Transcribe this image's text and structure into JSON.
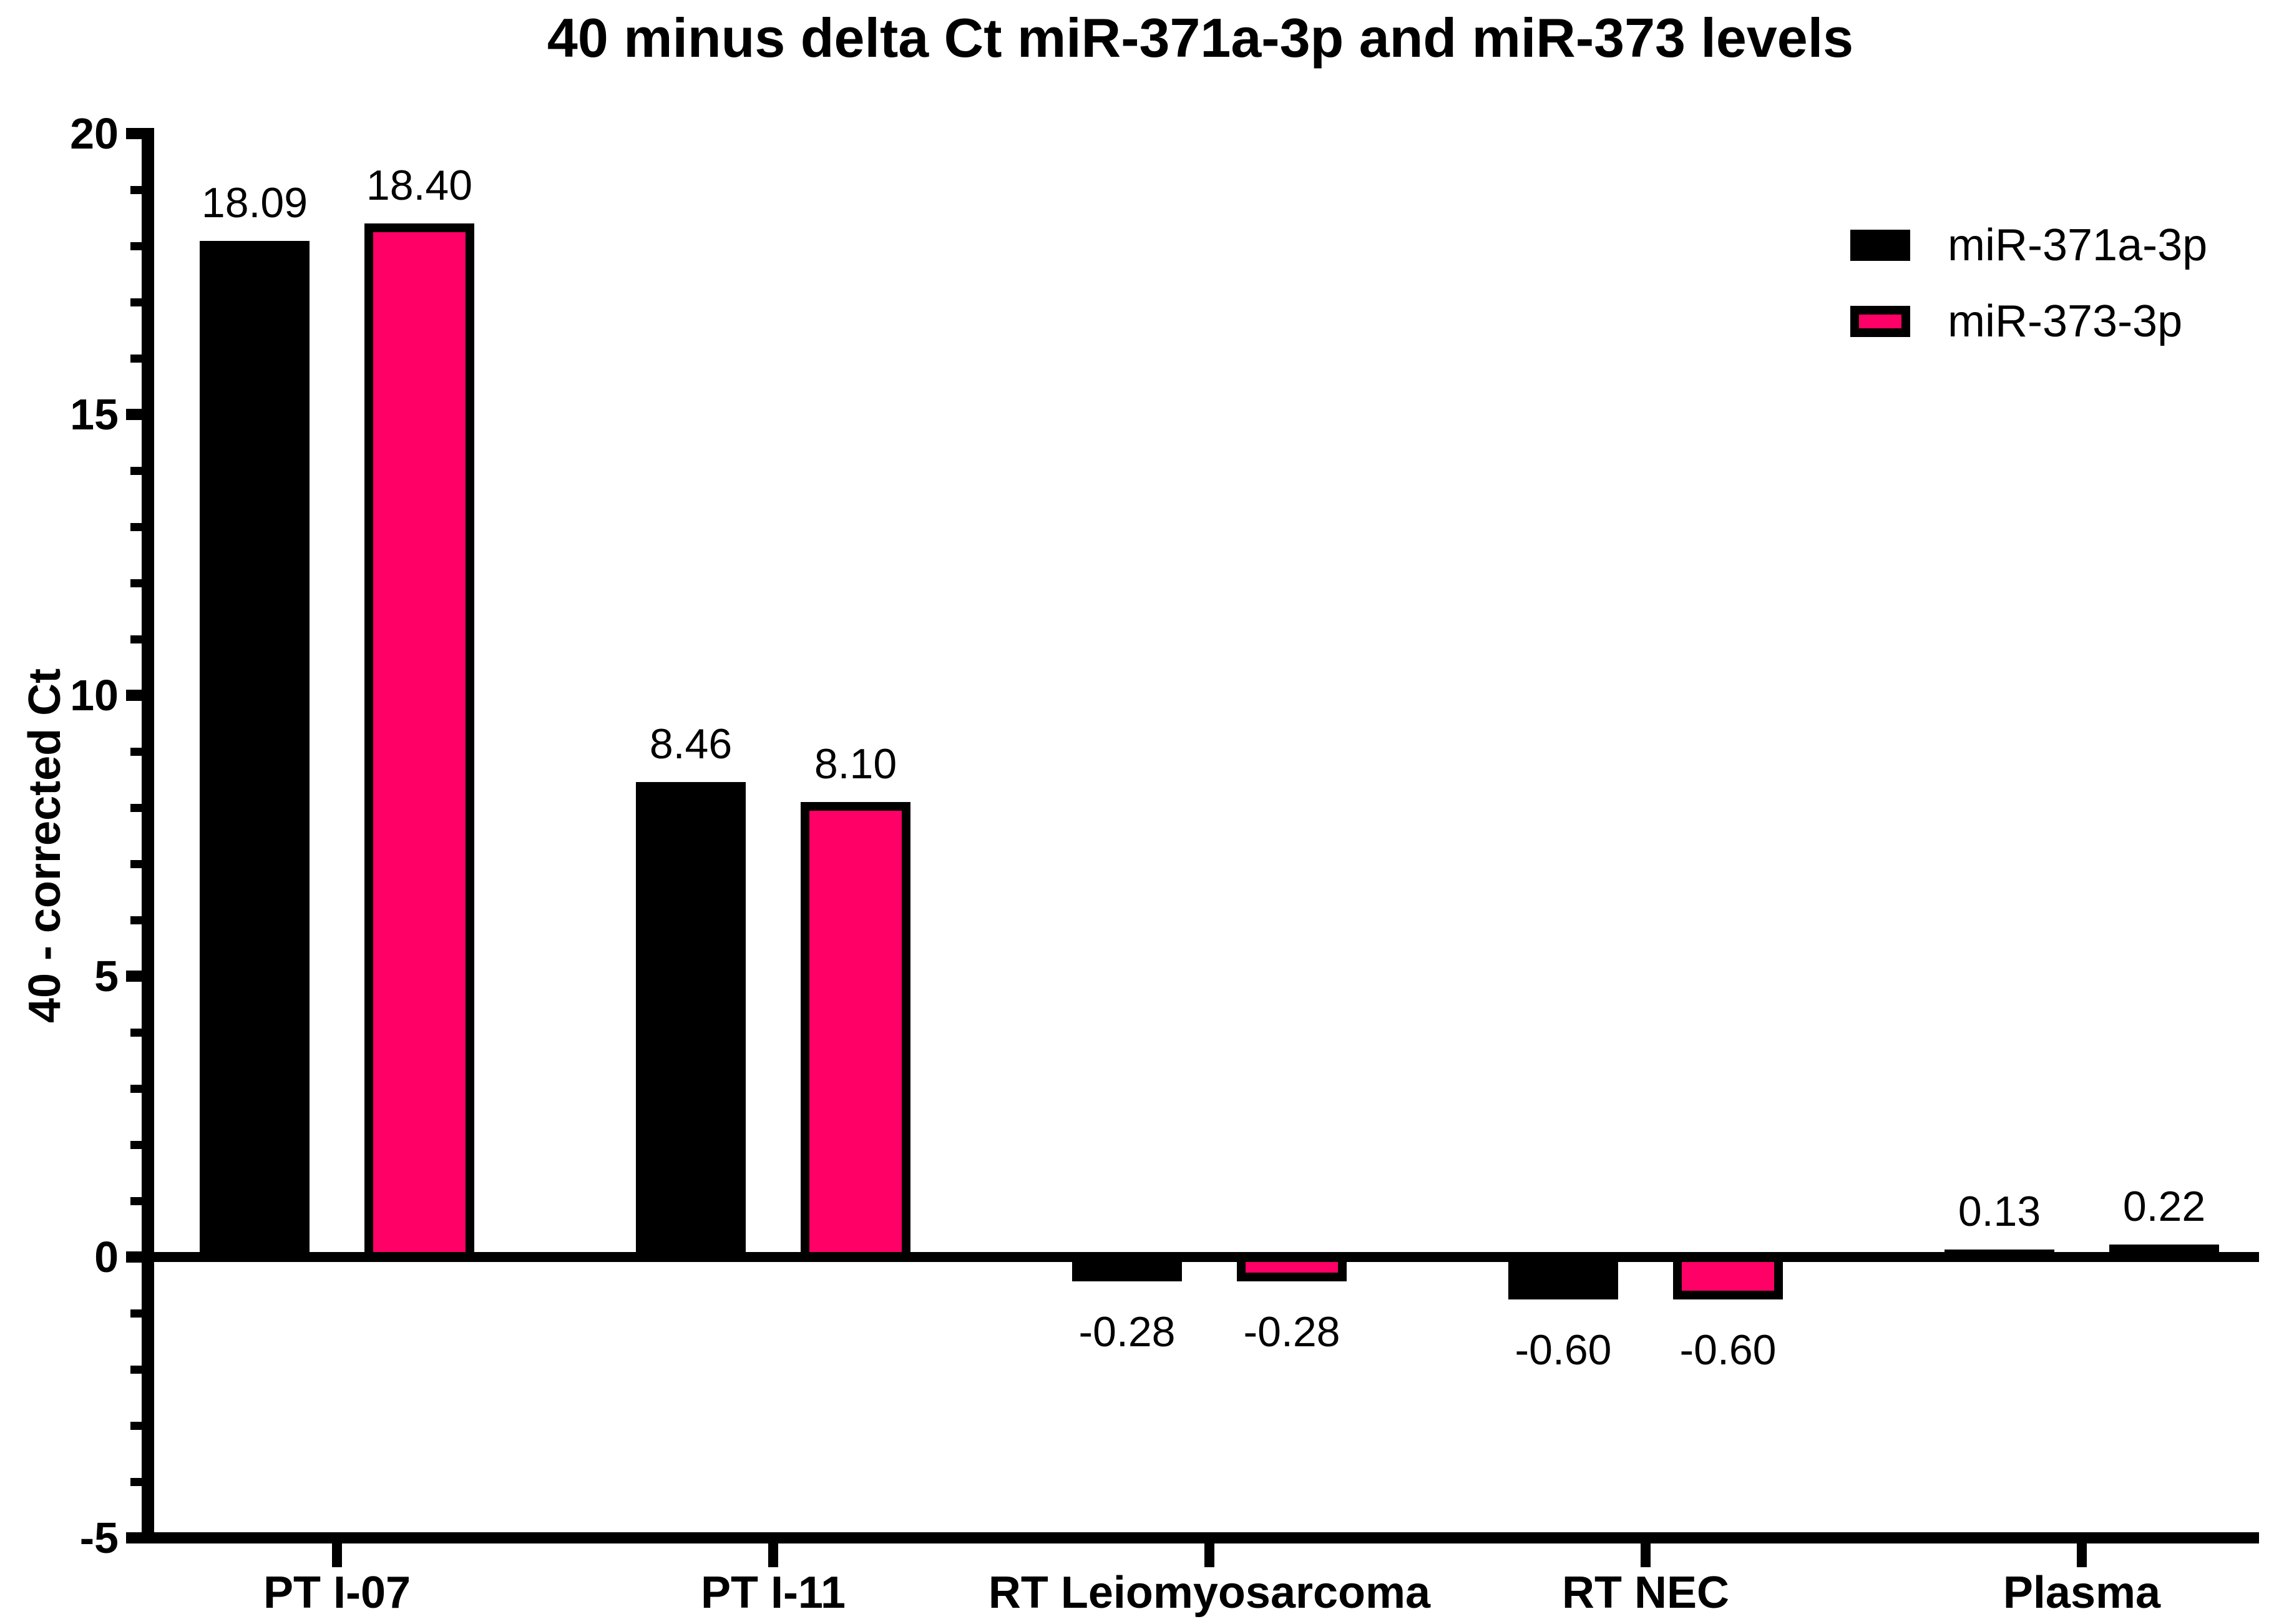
{
  "chart_data": {
    "type": "bar",
    "title": "40 minus delta Ct miR-371a-3p and miR-373 levels",
    "ylabel": "40 - corrected Ct",
    "xlabel": "",
    "categories": [
      "PT I-07",
      "PT I-11",
      "RT Leiomyosarcoma",
      "RT NEC",
      "Plasma"
    ],
    "series": [
      {
        "name": "miR-371a-3p",
        "color": "#000000",
        "values": [
          18.09,
          8.46,
          -0.28,
          -0.6,
          0.13
        ],
        "labels": [
          "18.09",
          "8.46",
          "-0.28",
          "-0.60",
          "0.13"
        ]
      },
      {
        "name": "miR-373-3p",
        "color": "#FF0066",
        "values": [
          18.4,
          8.1,
          -0.28,
          -0.6,
          0.22
        ],
        "labels": [
          "18.40",
          "8.10",
          "-0.28",
          "-0.60",
          "0.22"
        ]
      }
    ],
    "ylim": [
      -5,
      20
    ],
    "yticks": [
      20,
      15,
      10,
      5,
      0,
      -5
    ],
    "ytick_labels": [
      "20",
      "15",
      "10",
      "5",
      "0",
      "-5"
    ],
    "yminor_step": 1,
    "grid": false,
    "legend_position": "top-right",
    "bar_outline_color": "#000000",
    "baseline_value_line": 0
  }
}
